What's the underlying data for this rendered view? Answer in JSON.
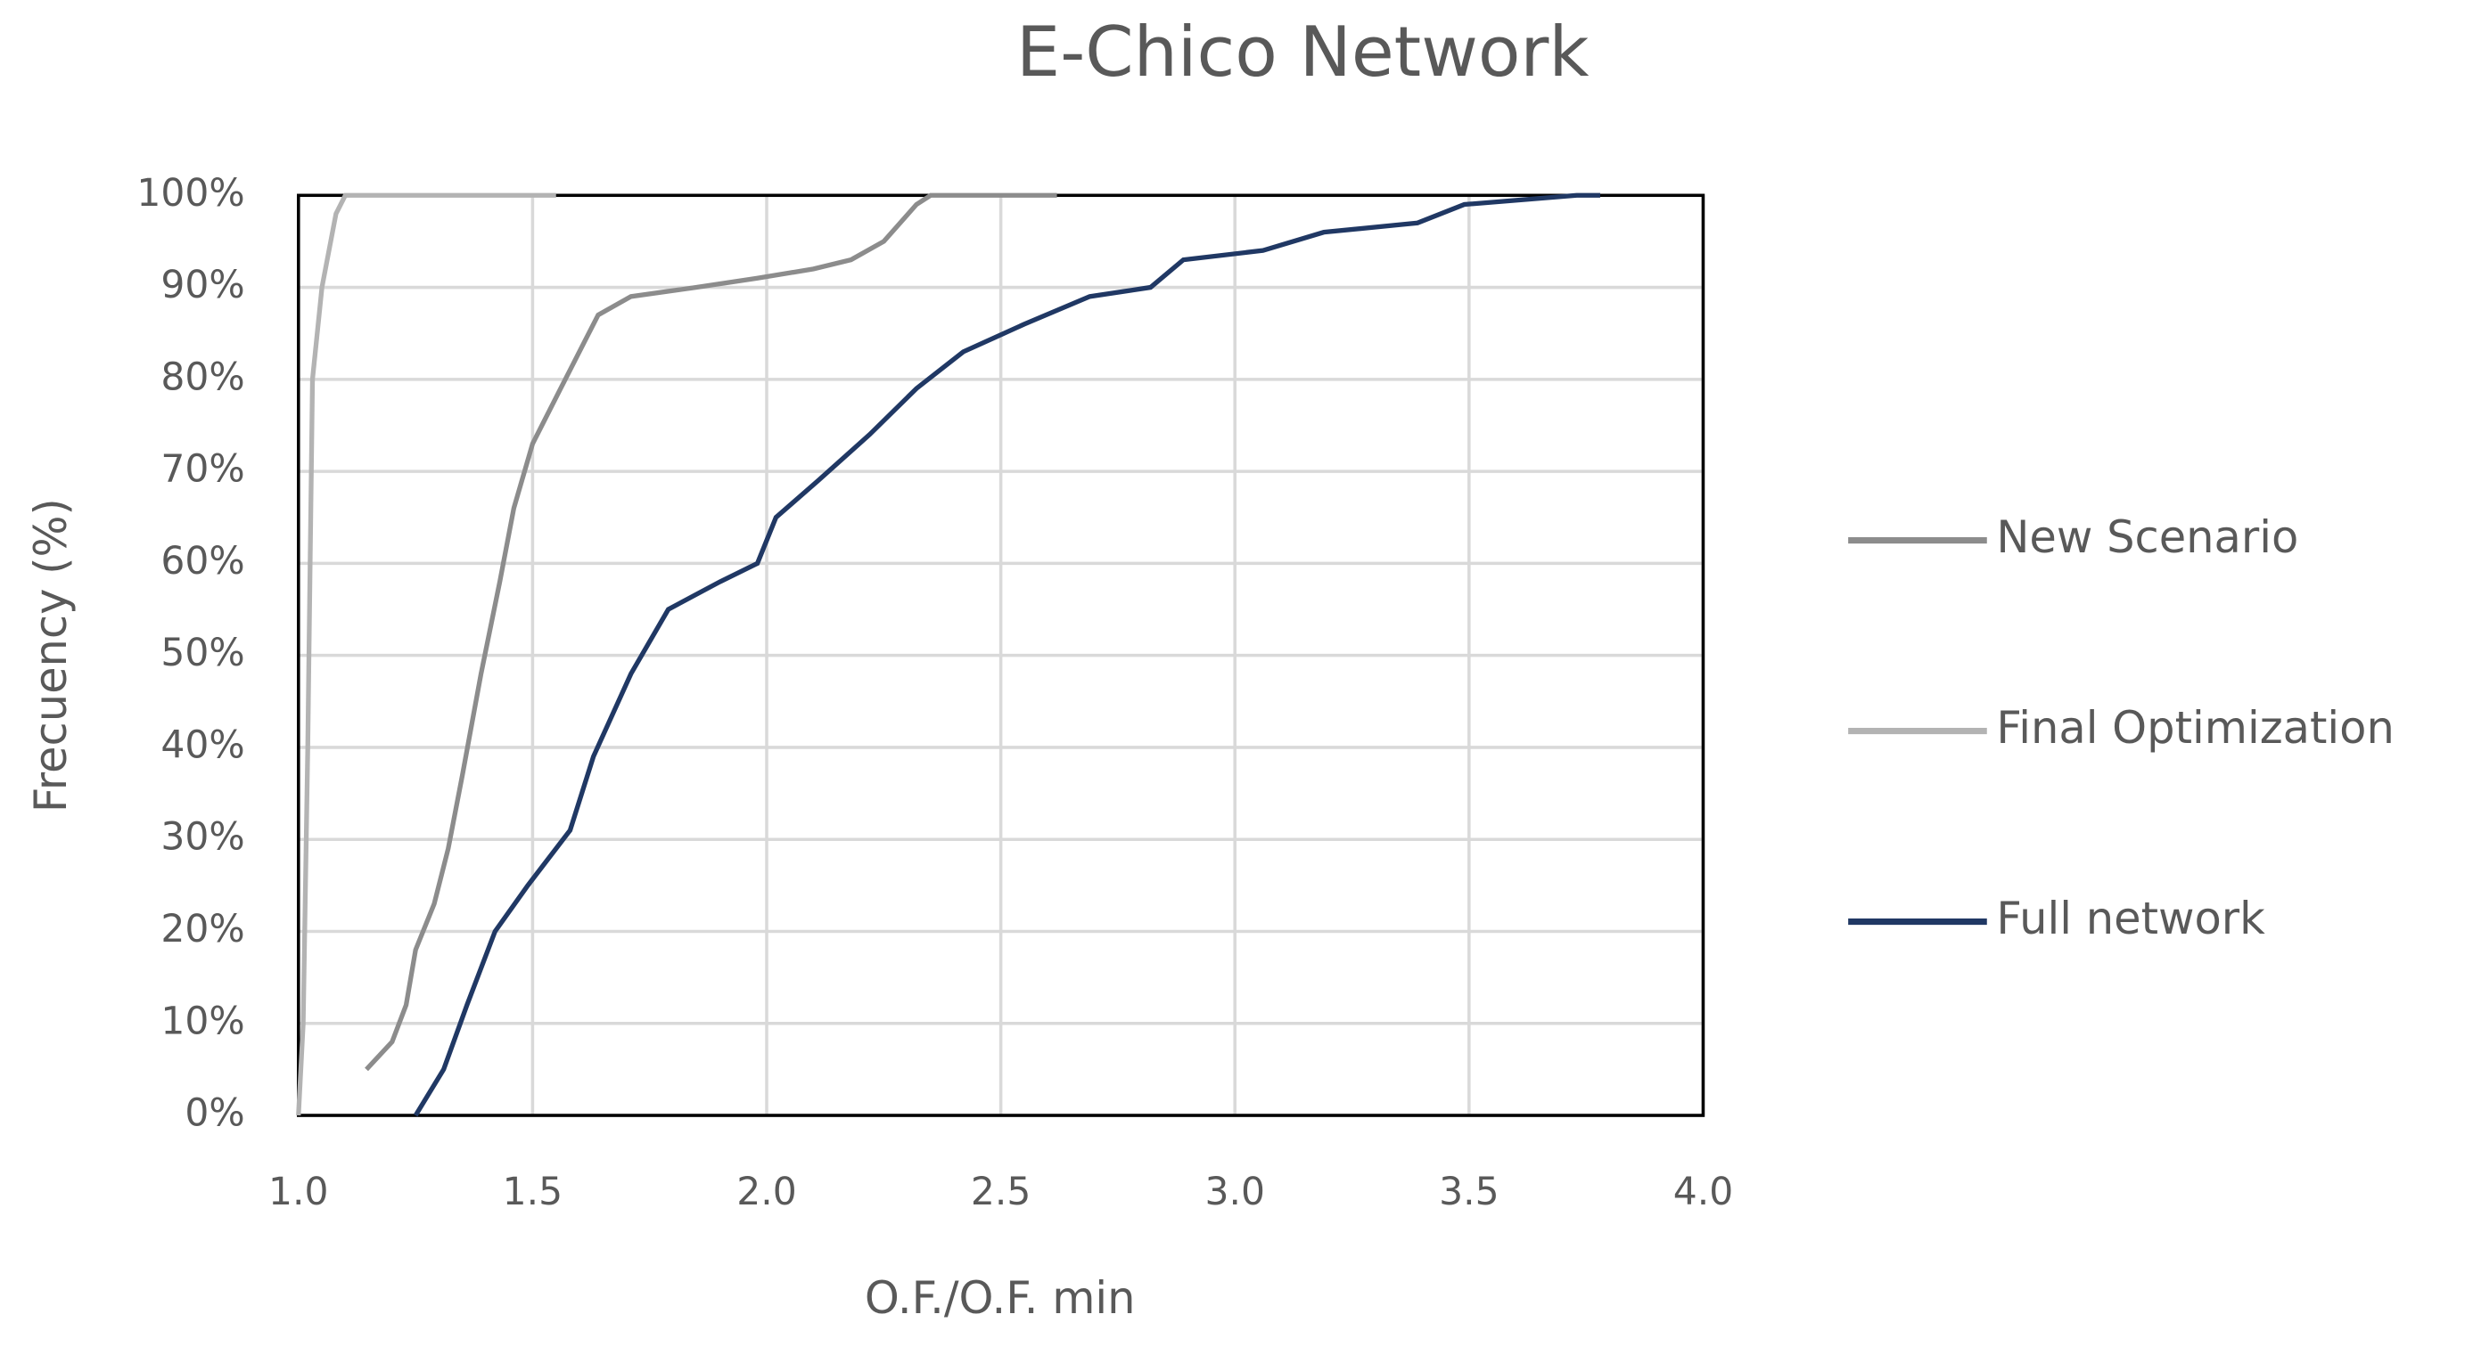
{
  "chart_data": {
    "type": "line",
    "title": "E-Chico Network",
    "x_label": "O.F./O.F. min",
    "y_label": "Frecuency (%)",
    "xlim": [
      1.0,
      4.0
    ],
    "xticks": [
      {
        "value": 1.0,
        "label": "1.0"
      },
      {
        "value": 1.5,
        "label": "1.5"
      },
      {
        "value": 2.0,
        "label": "2.0"
      },
      {
        "value": 2.5,
        "label": "2.5"
      },
      {
        "value": 3.0,
        "label": "3.0"
      },
      {
        "value": 3.5,
        "label": "3.5"
      },
      {
        "value": 4.0,
        "label": "4.0"
      }
    ],
    "ylim": [
      0,
      100
    ],
    "yticks": [
      {
        "value": 0,
        "label": "0%"
      },
      {
        "value": 10,
        "label": "10%"
      },
      {
        "value": 20,
        "label": "20%"
      },
      {
        "value": 30,
        "label": "30%"
      },
      {
        "value": 40,
        "label": "40%"
      },
      {
        "value": 50,
        "label": "50%"
      },
      {
        "value": 60,
        "label": "60%"
      },
      {
        "value": 70,
        "label": "70%"
      },
      {
        "value": 80,
        "label": "80%"
      },
      {
        "value": 90,
        "label": "90%"
      },
      {
        "value": 100,
        "label": "100%"
      }
    ],
    "grid": true,
    "legend": "right",
    "series": [
      {
        "name": "New Scenario",
        "color": "#8c8c8c",
        "x": [
          1.145,
          1.2,
          1.23,
          1.25,
          1.29,
          1.32,
          1.35,
          1.39,
          1.43,
          1.46,
          1.5,
          1.56,
          1.59,
          1.64,
          1.71,
          1.85,
          1.98,
          2.1,
          2.18,
          2.25,
          2.32,
          2.35,
          2.62
        ],
        "values": [
          5,
          8,
          12,
          18,
          23,
          29,
          37,
          48,
          58,
          66,
          73,
          79,
          82,
          87,
          89,
          90,
          91,
          92,
          93,
          95,
          99,
          100,
          100
        ]
      },
      {
        "name": "Final Optimization",
        "color": "#b3b3b3",
        "x": [
          1.0,
          1.01,
          1.02,
          1.03,
          1.05,
          1.08,
          1.1,
          1.55
        ],
        "values": [
          0,
          10,
          40,
          80,
          90,
          98,
          100,
          100
        ]
      },
      {
        "name": "Full network",
        "color": "#203864",
        "x": [
          1.25,
          1.31,
          1.36,
          1.42,
          1.49,
          1.58,
          1.63,
          1.71,
          1.79,
          1.9,
          1.98,
          2.02,
          2.11,
          2.22,
          2.32,
          2.42,
          2.55,
          2.69,
          2.82,
          2.89,
          3.06,
          3.19,
          3.39,
          3.49,
          3.73,
          3.78
        ],
        "values": [
          0,
          5,
          12,
          20,
          25,
          31,
          39,
          48,
          55,
          58,
          60,
          65,
          69,
          74,
          79,
          83,
          86,
          89,
          90,
          93,
          94,
          96,
          97,
          99,
          100,
          100
        ]
      }
    ]
  }
}
